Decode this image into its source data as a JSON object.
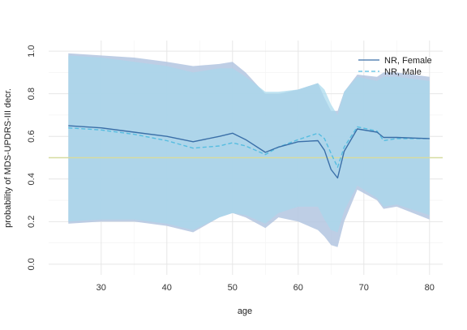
{
  "chart_data": {
    "type": "line",
    "title": "",
    "xlabel": "age",
    "ylabel": "probability of MDS-UPDRS-III decr.",
    "xlim": [
      22,
      82
    ],
    "ylim": [
      -0.05,
      1.05
    ],
    "x_ticks": [
      30,
      40,
      50,
      60,
      70,
      80
    ],
    "y_ticks": [
      0.0,
      0.2,
      0.4,
      0.6,
      0.8,
      1.0
    ],
    "x_tick_labels": [
      "30",
      "40",
      "50",
      "60",
      "70",
      "80"
    ],
    "y_tick_labels": [
      "0.0",
      "0.2",
      "0.4",
      "0.6",
      "0.8",
      "1.0"
    ],
    "grid": true,
    "legend_position": "top-right",
    "reference_line": {
      "y": 0.5,
      "color": "#d6dca0"
    },
    "series": [
      {
        "name": "NR, Female",
        "color": "#3a6fa8",
        "band_color": "#b3c5e0",
        "style": "solid",
        "x": [
          25,
          30,
          35,
          40,
          44,
          48,
          50,
          52,
          55,
          57,
          60,
          63,
          64,
          65,
          66,
          67,
          69,
          72,
          73,
          75,
          80
        ],
        "y": [
          0.65,
          0.64,
          0.62,
          0.6,
          0.575,
          0.6,
          0.615,
          0.585,
          0.525,
          0.55,
          0.575,
          0.58,
          0.535,
          0.445,
          0.405,
          0.53,
          0.635,
          0.62,
          0.595,
          0.595,
          0.59
        ],
        "lower": [
          0.19,
          0.2,
          0.2,
          0.18,
          0.15,
          0.22,
          0.24,
          0.22,
          0.17,
          0.22,
          0.2,
          0.16,
          0.13,
          0.09,
          0.08,
          0.2,
          0.35,
          0.3,
          0.26,
          0.27,
          0.21
        ],
        "upper": [
          0.99,
          0.98,
          0.97,
          0.95,
          0.93,
          0.94,
          0.95,
          0.9,
          0.8,
          0.8,
          0.82,
          0.85,
          0.78,
          0.72,
          0.72,
          0.81,
          0.89,
          0.88,
          0.9,
          0.9,
          0.88
        ]
      },
      {
        "name": "NR, Male",
        "color": "#56bde0",
        "band_color": "#a6d9ed",
        "style": "dashed",
        "x": [
          25,
          30,
          35,
          40,
          44,
          48,
          50,
          52,
          55,
          57,
          60,
          63,
          64,
          65,
          66,
          67,
          69,
          72,
          73,
          75,
          80
        ],
        "y": [
          0.64,
          0.63,
          0.61,
          0.58,
          0.545,
          0.555,
          0.57,
          0.555,
          0.515,
          0.55,
          0.585,
          0.615,
          0.59,
          0.52,
          0.455,
          0.55,
          0.645,
          0.625,
          0.58,
          0.59,
          0.59
        ],
        "lower": [
          0.2,
          0.21,
          0.21,
          0.19,
          0.16,
          0.22,
          0.24,
          0.23,
          0.19,
          0.24,
          0.27,
          0.27,
          0.21,
          0.16,
          0.15,
          0.25,
          0.37,
          0.31,
          0.27,
          0.28,
          0.23
        ],
        "upper": [
          0.98,
          0.97,
          0.95,
          0.93,
          0.9,
          0.92,
          0.92,
          0.88,
          0.81,
          0.81,
          0.82,
          0.85,
          0.82,
          0.75,
          0.7,
          0.81,
          0.88,
          0.86,
          0.88,
          0.88,
          0.86
        ]
      }
    ]
  }
}
